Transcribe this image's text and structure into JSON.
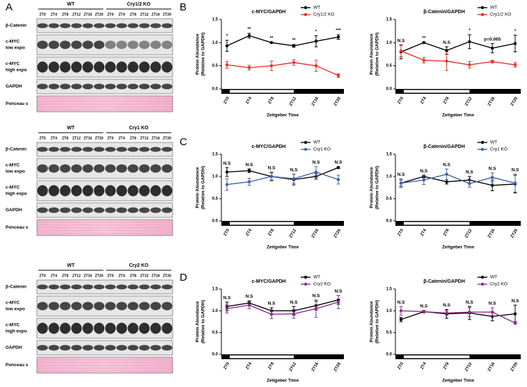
{
  "panel_labels": [
    "A",
    "B",
    "C",
    "D"
  ],
  "blots": [
    {
      "groups": [
        "WT",
        "Cry1/2 KO"
      ],
      "lanes": [
        "ZT0",
        "ZT4",
        "ZT8",
        "ZT12",
        "ZT16",
        "ZT20",
        "ZT0",
        "ZT4",
        "ZT8",
        "ZT12",
        "ZT16",
        "ZT20"
      ],
      "rows": [
        [
          "β-Catenin"
        ],
        [
          "c-MYC",
          "low expo"
        ],
        [
          "c-MYC",
          "high expo"
        ],
        [
          "GAPDH"
        ],
        [
          "Ponceau s"
        ]
      ]
    },
    {
      "groups": [
        "WT",
        "Cry1 KO"
      ],
      "lanes": [
        "ZT0",
        "ZT4",
        "ZT8",
        "ZT12",
        "ZT16",
        "ZT20",
        "ZT0",
        "ZT4",
        "ZT8",
        "ZT12",
        "ZT16",
        "ZT20"
      ],
      "rows": [
        [
          "β-Catenin"
        ],
        [
          "c-MYC",
          "low expo"
        ],
        [
          "c-MYC",
          "high expo"
        ],
        [
          "GAPDH"
        ],
        [
          "Ponceau s"
        ]
      ]
    },
    {
      "groups": [
        "WT",
        "Cry2 KO"
      ],
      "lanes": [
        "ZT0",
        "ZT4",
        "ZT8",
        "ZT12",
        "ZT16",
        "ZT20",
        "ZT0",
        "ZT4",
        "ZT8",
        "ZT12",
        "ZT16",
        "ZT20"
      ],
      "rows": [
        [
          "β-Catenin"
        ],
        [
          "c-MYC",
          "low expo"
        ],
        [
          "c-MYC",
          "high expo"
        ],
        [
          "GAPDH"
        ],
        [
          "Ponceau s"
        ]
      ]
    }
  ],
  "chart_data": [
    {
      "type": "line",
      "title": "c-MYC/GAPDH",
      "xlabel": "Zeitgeber Time",
      "ylabel": [
        "Protein Abundance",
        "(Relative to GAPDH)"
      ],
      "categories": [
        "ZT0",
        "ZT4",
        "ZT8",
        "ZT12",
        "ZT16",
        "ZT20"
      ],
      "ylim": [
        0,
        1.5
      ],
      "yticks": [
        {
          "value": 0,
          "label": "0.0"
        },
        0.5,
        {
          "value": 1,
          "label": "1.0"
        },
        1.5
      ],
      "legend": "upper right",
      "series": [
        {
          "name": "WT",
          "color": "#000000",
          "values": [
            0.93,
            1.15,
            1.0,
            0.93,
            1.03,
            1.12
          ],
          "errors": [
            0.12,
            0.05,
            0.01,
            0.03,
            0.12,
            0.05
          ]
        },
        {
          "name": "Cry1/2 KO",
          "color": "#e8322a",
          "values": [
            0.52,
            0.46,
            0.5,
            0.57,
            0.5,
            0.29
          ],
          "errors": [
            0.07,
            0.05,
            0.1,
            0.06,
            0.12,
            0.04
          ]
        }
      ],
      "annotations": [
        "*",
        "**",
        "**",
        "**",
        "*",
        "***"
      ]
    },
    {
      "type": "line",
      "title": "β-Catenin/GAPDH",
      "xlabel": "Zeitgeber Time",
      "ylabel": [
        "Protein Abundance",
        "(Relative to GAPDH)"
      ],
      "categories": [
        "ZT0",
        "ZT4",
        "ZT8",
        "ZT12",
        "ZT16",
        "ZT20"
      ],
      "ylim": [
        0,
        1.5
      ],
      "yticks": [
        {
          "value": 0,
          "label": "0.0"
        },
        0.5,
        {
          "value": 1,
          "label": "1.0"
        },
        1.5
      ],
      "legend": "upper right",
      "series": [
        {
          "name": "WT",
          "color": "#000000",
          "values": [
            0.8,
            1.0,
            0.83,
            1.02,
            0.88,
            0.98
          ],
          "errors": [
            0.15,
            0.01,
            0.08,
            0.15,
            0.1,
            0.18
          ]
        },
        {
          "name": "Cry1/2 KO",
          "color": "#e8322a",
          "values": [
            0.82,
            0.62,
            0.6,
            0.52,
            0.59,
            0.52
          ],
          "errors": [
            0.12,
            0.06,
            0.2,
            0.07,
            0.03,
            0.05
          ]
        }
      ],
      "annotations": [
        "N.S",
        "**",
        "N.S",
        "*",
        "p=0.065",
        "*"
      ]
    },
    {
      "type": "line",
      "title": "c-MYC/GAPDH",
      "xlabel": "Zeitgeber Time",
      "ylabel": [
        "Protein Abundance",
        "(Relative to GAPDH)"
      ],
      "categories": [
        "ZT0",
        "ZT4",
        "ZT8",
        "ZT12",
        "ZT16",
        "ZT20"
      ],
      "ylim": [
        0,
        1.5
      ],
      "yticks": [
        {
          "value": 0,
          "label": "0.0"
        },
        0.5,
        {
          "value": 1,
          "label": "1.0"
        },
        1.5
      ],
      "legend": "upper right",
      "series": [
        {
          "name": "WT",
          "color": "#000000",
          "values": [
            1.1,
            1.13,
            1.0,
            0.93,
            1.0,
            1.2
          ],
          "errors": [
            0.1,
            0.04,
            0.08,
            0.12,
            0.06,
            0.02
          ]
        },
        {
          "name": "Cry1 KO",
          "color": "#3f64ac",
          "values": [
            0.82,
            0.88,
            1.0,
            0.95,
            1.1,
            0.93
          ],
          "errors": [
            0.13,
            0.08,
            0.1,
            0.1,
            0.12,
            0.1
          ]
        }
      ],
      "annotations": [
        "N.S",
        "N.S",
        "N.S",
        "N.S",
        "N.S",
        "N.S"
      ]
    },
    {
      "type": "line",
      "title": "β-Catenin/GAPDH",
      "xlabel": "Zeitgeber Time",
      "ylabel": [
        "Protein Abundance",
        "(Relative to GAPDH)"
      ],
      "categories": [
        "ZT0",
        "ZT4",
        "ZT8",
        "ZT12",
        "ZT16",
        "ZT20"
      ],
      "ylim": [
        0,
        1.5
      ],
      "yticks": [
        {
          "value": 0,
          "label": "0.0"
        },
        0.5,
        {
          "value": 1,
          "label": "1.0"
        },
        1.5
      ],
      "legend": "upper right",
      "series": [
        {
          "name": "WT",
          "color": "#000000",
          "values": [
            0.85,
            1.0,
            0.88,
            0.92,
            0.8,
            0.83
          ],
          "errors": [
            0.07,
            0.03,
            0.05,
            0.08,
            0.12,
            0.2
          ]
        },
        {
          "name": "Cry1 KO",
          "color": "#3f64ac",
          "values": [
            0.85,
            0.92,
            1.05,
            0.84,
            0.98,
            0.85
          ],
          "errors": [
            0.1,
            0.1,
            0.12,
            0.08,
            0.1,
            0.2
          ]
        }
      ],
      "annotations": [
        "N.S",
        "N.S",
        "N.S",
        "N.S",
        "N.S",
        "N.S"
      ]
    },
    {
      "type": "line",
      "title": "c-MYC/GAPDH",
      "xlabel": "Zeitgeber Time",
      "ylabel": [
        "Protein Abundance",
        "(Relative to GAPDH)"
      ],
      "categories": [
        "ZT0",
        "ZT4",
        "ZT8",
        "ZT12",
        "ZT16",
        "ZT20"
      ],
      "ylim": [
        0,
        1.5
      ],
      "yticks": [
        {
          "value": 0,
          "label": "0.0"
        },
        0.5,
        {
          "value": 1,
          "label": "1.0"
        },
        1.5
      ],
      "legend": "upper right",
      "series": [
        {
          "name": "WT",
          "color": "#000000",
          "values": [
            1.1,
            1.18,
            1.0,
            1.0,
            1.12,
            1.25
          ],
          "errors": [
            0.1,
            0.05,
            0.07,
            0.1,
            0.1,
            0.1
          ]
        },
        {
          "name": "Cry2 KO",
          "color": "#8e2d8e",
          "values": [
            1.05,
            1.13,
            0.92,
            0.93,
            1.05,
            1.2
          ],
          "errors": [
            0.1,
            0.08,
            0.1,
            0.1,
            0.2,
            0.15
          ]
        }
      ],
      "annotations": [
        "N.S",
        "N.S",
        "N.S",
        "N.S",
        "N.S",
        "N.S"
      ]
    },
    {
      "type": "line",
      "title": "β-Catenin/GAPDH",
      "xlabel": "Zeitgeber Time",
      "ylabel": [
        "Protein Abundance",
        "(Relative to GAPDH)"
      ],
      "categories": [
        "ZT0",
        "ZT4",
        "ZT8",
        "ZT12",
        "ZT16",
        "ZT20"
      ],
      "ylim": [
        0,
        1.5
      ],
      "yticks": [
        {
          "value": 0,
          "label": "0.0"
        },
        0.5,
        {
          "value": 1,
          "label": "1.0"
        },
        1.5
      ],
      "legend": "upper right",
      "series": [
        {
          "name": "WT",
          "color": "#000000",
          "values": [
            0.8,
            0.98,
            0.93,
            0.95,
            0.87,
            0.93
          ],
          "errors": [
            0.05,
            0.03,
            0.1,
            0.15,
            0.1,
            0.2
          ]
        },
        {
          "name": "Cry2 KO",
          "color": "#8e2d8e",
          "values": [
            1.0,
            0.98,
            0.95,
            0.97,
            0.97,
            0.72
          ],
          "errors": [
            0.1,
            0.03,
            0.05,
            0.1,
            0.1,
            0.03
          ]
        }
      ],
      "annotations": [
        "N.S",
        "N.S",
        "N.S",
        "N.S",
        "N.S",
        "N.S"
      ]
    }
  ]
}
